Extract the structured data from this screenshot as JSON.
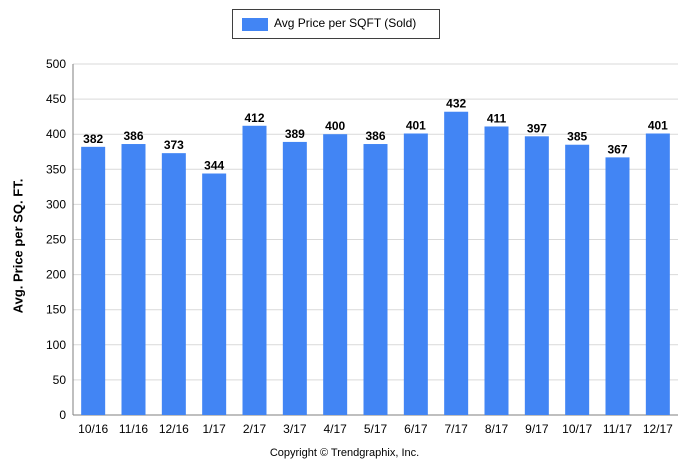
{
  "legend": {
    "label": "Avg Price per SQFT (Sold)",
    "swatch_color": "#4285f4"
  },
  "footer": {
    "copyright": "Copyright © Trendgraphix, Inc."
  },
  "chart_data": {
    "type": "bar",
    "title": "",
    "xlabel": "",
    "ylabel": "Avg. Price per SQ. FT.",
    "categories": [
      "10/16",
      "11/16",
      "12/16",
      "1/17",
      "2/17",
      "3/17",
      "4/17",
      "5/17",
      "6/17",
      "7/17",
      "8/17",
      "9/17",
      "10/17",
      "11/17",
      "12/17"
    ],
    "series": [
      {
        "name": "Avg Price per SQFT (Sold)",
        "values": [
          382,
          386,
          373,
          344,
          412,
          389,
          400,
          386,
          401,
          432,
          411,
          397,
          385,
          367,
          401
        ],
        "color": "#4285f4"
      }
    ],
    "ylim": [
      0,
      500
    ],
    "yticks": [
      0,
      50,
      100,
      150,
      200,
      250,
      300,
      350,
      400,
      450,
      500
    ],
    "grid": true,
    "legend_position": "top-center",
    "data_labels": true
  }
}
